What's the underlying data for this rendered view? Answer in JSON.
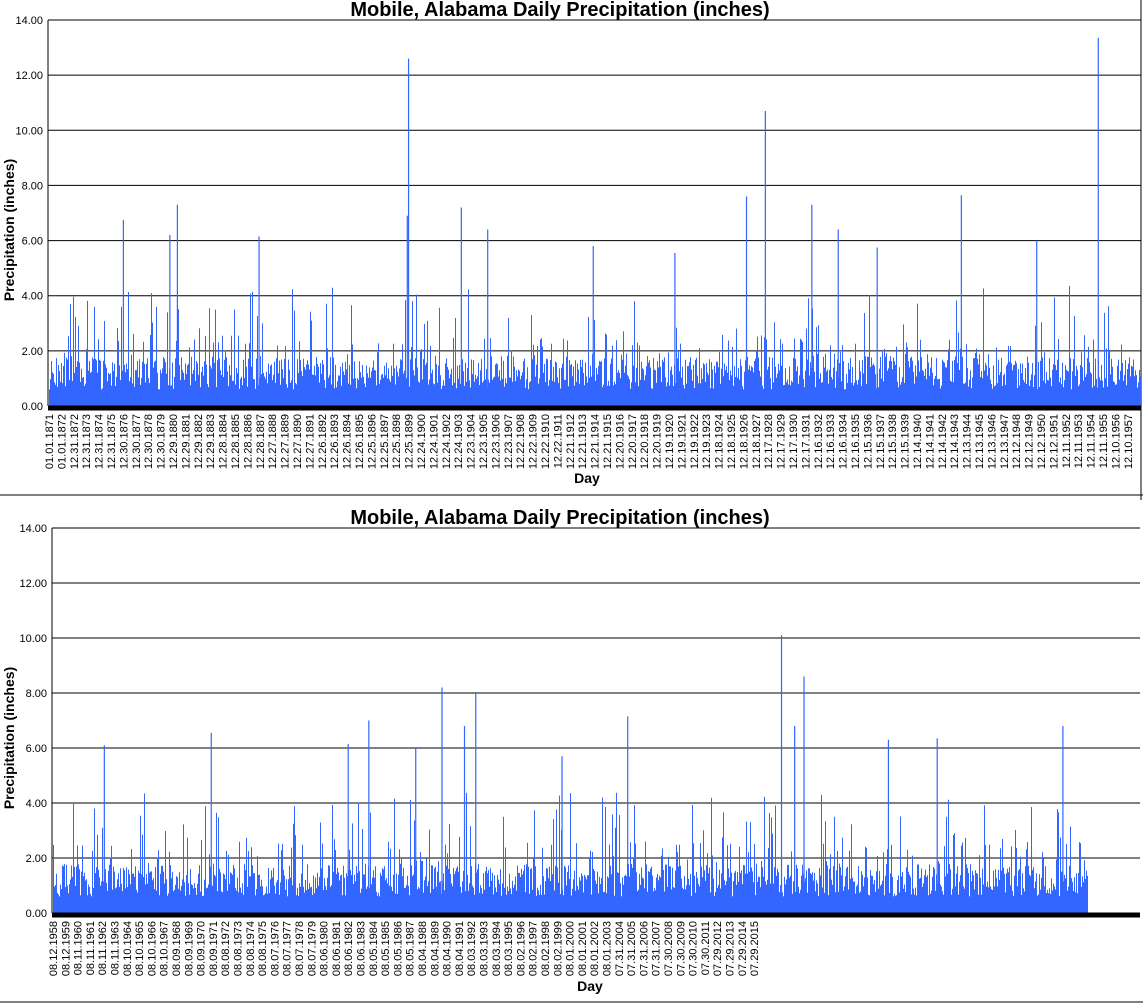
{
  "chart_data": [
    {
      "type": "bar",
      "title": "Mobile, Alabama Daily Precipitation (inches)",
      "xlabel": "Day",
      "ylabel": "Precipitation (inches)",
      "ylim": [
        0,
        14
      ],
      "yticks": [
        "0.00",
        "2.00",
        "4.00",
        "6.00",
        "8.00",
        "10.00",
        "12.00",
        "14.00"
      ],
      "grid": true,
      "bar_color": "#3366ff",
      "x_tick_labels": [
        "01.01.1871",
        "01.01.1872",
        "12.31.1872",
        "12.31.1873",
        "12.31.1874",
        "12.31.1875",
        "12.30.1876",
        "12.30.1877",
        "12.30.1878",
        "12.30.1879",
        "12.29.1880",
        "12.29.1881",
        "12.29.1882",
        "12.29.1883",
        "12.28.1884",
        "12.28.1885",
        "12.28.1886",
        "12.28.1887",
        "12.27.1888",
        "12.27.1889",
        "12.27.1890",
        "12.27.1891",
        "12.26.1892",
        "12.26.1893",
        "12.26.1894",
        "12.26.1895",
        "12.25.1896",
        "12.25.1897",
        "12.25.1898",
        "12.25.1899",
        "12.24.1900",
        "12.24.1901",
        "12.24.1902",
        "12.24.1903",
        "12.23.1904",
        "12.23.1905",
        "12.23.1906",
        "12.23.1907",
        "12.22.1908",
        "12.22.1909",
        "12.22.1910",
        "12.22.1911",
        "12.21.1912",
        "12.21.1913",
        "12.21.1914",
        "12.21.1915",
        "12.20.1916",
        "12.20.1917",
        "12.20.1918",
        "12.20.1919",
        "12.19.1920",
        "12.19.1921",
        "12.19.1922",
        "12.19.1923",
        "12.18.1924",
        "12.18.1925",
        "12.18.1926",
        "12.18.1927",
        "12.17.1928",
        "12.17.1929",
        "12.17.1930",
        "12.17.1931",
        "12.16.1932",
        "12.16.1933",
        "12.16.1934",
        "12.16.1935",
        "12.15.1936",
        "12.15.1937",
        "12.15.1938",
        "12.15.1939",
        "12.14.1940",
        "12.14.1941",
        "12.14.1942",
        "12.14.1943",
        "12.13.1944",
        "12.13.1945",
        "12.13.1946",
        "12.13.1947",
        "12.12.1948",
        "12.12.1949",
        "12.12.1950",
        "12.12.1951",
        "12.11.1952",
        "12.11.1953",
        "12.11.1954",
        "12.11.1955",
        "12.10.1956",
        "12.10.1957"
      ],
      "peaks": [
        {
          "year": 1899.7,
          "value": 12.6
        },
        {
          "year": 1954.6,
          "value": 13.35
        },
        {
          "year": 1928.1,
          "value": 10.7
        },
        {
          "year": 1881.3,
          "value": 7.3
        },
        {
          "year": 1877.0,
          "value": 6.75
        },
        {
          "year": 1903.9,
          "value": 7.2
        },
        {
          "year": 1926.6,
          "value": 7.6
        },
        {
          "year": 1931.8,
          "value": 7.3
        },
        {
          "year": 1943.7,
          "value": 7.65
        },
        {
          "year": 1899.6,
          "value": 6.9
        },
        {
          "year": 1906.0,
          "value": 6.4
        },
        {
          "year": 1933.9,
          "value": 6.4
        },
        {
          "year": 1880.7,
          "value": 6.2
        },
        {
          "year": 1887.8,
          "value": 6.15
        },
        {
          "year": 1949.7,
          "value": 6.0
        },
        {
          "year": 1914.4,
          "value": 5.8
        },
        {
          "year": 1937.0,
          "value": 5.75
        },
        {
          "year": 1920.9,
          "value": 5.55
        }
      ]
    },
    {
      "type": "bar",
      "title": "Mobile, Alabama Daily Precipitation (inches)",
      "xlabel": "Day",
      "ylabel": "Precipitation (inches)",
      "ylim": [
        0,
        14
      ],
      "yticks": [
        "0.00",
        "2.00",
        "4.00",
        "6.00",
        "8.00",
        "10.00",
        "12.00",
        "14.00"
      ],
      "grid": true,
      "bar_color": "#3366ff",
      "x_tick_labels": [
        "08.12.1958",
        "08.12.1959",
        "08.11.1960",
        "08.11.1961",
        "08.11.1962",
        "08.11.1963",
        "08.10.1964",
        "08.10.1965",
        "08.10.1966",
        "08.10.1967",
        "08.09.1968",
        "08.09.1969",
        "08.09.1970",
        "08.09.1971",
        "08.08.1972",
        "08.08.1973",
        "08.08.1974",
        "08.08.1975",
        "08.07.1976",
        "08.07.1977",
        "08.07.1978",
        "08.07.1979",
        "08.06.1980",
        "08.06.1981",
        "08.06.1982",
        "08.06.1983",
        "08.05.1984",
        "08.05.1985",
        "08.05.1986",
        "08.05.1987",
        "08.04.1988",
        "08.04.1989",
        "08.04.1990",
        "08.04.1991",
        "08.03.1992",
        "08.03.1993",
        "08.03.1994",
        "08.03.1995",
        "08.02.1996",
        "08.02.1997",
        "08.02.1998",
        "08.02.1999",
        "08.01.2000",
        "08.01.2001",
        "08.01.2002",
        "08.01.2003",
        "07.31.2004",
        "07.31.2005",
        "07.31.2006",
        "07.31.2007",
        "07.30.2008",
        "07.30.2009",
        "07.30.2010",
        "07.30.2011",
        "07.29.2012",
        "07.29.2013",
        "07.29.2014",
        "07.29.2015"
      ],
      "peaks": [
        {
          "year": 1997.5,
          "value": 10.1
        },
        {
          "year": 1998.7,
          "value": 8.6
        },
        {
          "year": 1979.4,
          "value": 8.2
        },
        {
          "year": 1981.2,
          "value": 8.0
        },
        {
          "year": 1989.3,
          "value": 7.15
        },
        {
          "year": 1975.5,
          "value": 7.0
        },
        {
          "year": 1980.6,
          "value": 6.8
        },
        {
          "year": 1998.2,
          "value": 6.8
        },
        {
          "year": 2012.5,
          "value": 6.8
        },
        {
          "year": 1967.1,
          "value": 6.55
        },
        {
          "year": 2005.8,
          "value": 6.35
        },
        {
          "year": 2003.2,
          "value": 6.3
        },
        {
          "year": 1974.4,
          "value": 6.15
        },
        {
          "year": 1961.4,
          "value": 6.1
        },
        {
          "year": 1978.0,
          "value": 6.0
        },
        {
          "year": 1985.8,
          "value": 5.7
        }
      ]
    }
  ]
}
